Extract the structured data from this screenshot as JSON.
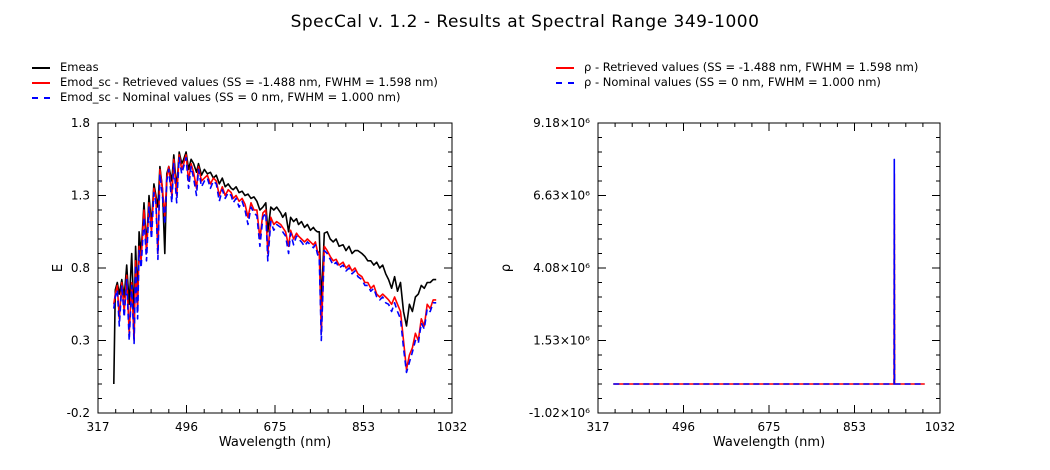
{
  "title": "SpecCal v. 1.2 - Results at Spectral Range 349-1000",
  "legend_left": [
    {
      "label": "Emeas",
      "style": "solid",
      "color": "#000000"
    },
    {
      "label": "Emod_sc - Retrieved values (SS = -1.488 nm, FWHM =  1.598 nm)",
      "style": "solid",
      "color": "#ff0000"
    },
    {
      "label": "Emod_sc - Nominal values (SS = 0 nm, FWHM =  1.000 nm)",
      "style": "dashed",
      "color": "#0000ff"
    }
  ],
  "legend_right": [
    {
      "label": "ρ - Retrieved values (SS = -1.488 nm, FWHM =  1.598 nm)",
      "style": "solid",
      "color": "#ff0000"
    },
    {
      "label": "ρ - Nominal values (SS = 0 nm, FWHM =  1.000 nm)",
      "style": "dashed",
      "color": "#0000ff"
    }
  ],
  "chart_data": [
    {
      "type": "line",
      "xlabel": "Wavelength (nm)",
      "ylabel": "E",
      "xlim": [
        317,
        1032
      ],
      "ylim": [
        -0.2,
        1.8
      ],
      "xticks": [
        "317",
        "496",
        "675",
        "853",
        "1032"
      ],
      "yticks": [
        "-0.2",
        "0.3",
        "0.8",
        "1.3",
        "1.8"
      ],
      "x": [
        349,
        352,
        356,
        360,
        365,
        370,
        375,
        380,
        385,
        390,
        393,
        397,
        400,
        404,
        410,
        415,
        420,
        425,
        430,
        434,
        438,
        442,
        447,
        452,
        456,
        460,
        466,
        470,
        476,
        481,
        486,
        490,
        495,
        500,
        505,
        510,
        516,
        520,
        526,
        532,
        538,
        544,
        550,
        556,
        562,
        568,
        574,
        580,
        586,
        590,
        596,
        602,
        608,
        614,
        620,
        626,
        632,
        638,
        644,
        650,
        656,
        660,
        666,
        672,
        678,
        686,
        690,
        696,
        702,
        706,
        712,
        718,
        722,
        728,
        734,
        740,
        746,
        752,
        756,
        760,
        764,
        768,
        774,
        780,
        786,
        792,
        798,
        804,
        812,
        818,
        824,
        830,
        836,
        842,
        850,
        856,
        862,
        868,
        874,
        880,
        886,
        892,
        898,
        904,
        910,
        916,
        922,
        928,
        934,
        940,
        946,
        952,
        958,
        964,
        970,
        976,
        982,
        988,
        994,
        1000
      ],
      "series": [
        {
          "name": "Emeas",
          "color": "#000000",
          "dashed": false,
          "values": [
            0.0,
            0.65,
            0.7,
            0.62,
            0.72,
            0.6,
            0.82,
            0.55,
            0.9,
            0.45,
            0.95,
            0.6,
            1.05,
            0.9,
            1.25,
            0.95,
            1.3,
            1.1,
            1.38,
            1.3,
            1.22,
            1.5,
            1.35,
            0.9,
            1.45,
            1.5,
            1.4,
            1.58,
            1.35,
            1.6,
            1.52,
            1.55,
            1.6,
            1.48,
            1.55,
            1.52,
            1.46,
            1.52,
            1.44,
            1.48,
            1.45,
            1.46,
            1.42,
            1.44,
            1.38,
            1.42,
            1.36,
            1.38,
            1.35,
            1.34,
            1.36,
            1.32,
            1.33,
            1.3,
            1.31,
            1.28,
            1.29,
            1.26,
            1.2,
            1.22,
            1.25,
            1.05,
            1.22,
            1.2,
            1.22,
            1.18,
            1.15,
            1.18,
            1.05,
            1.15,
            1.12,
            1.14,
            1.1,
            1.12,
            1.08,
            1.1,
            1.06,
            1.08,
            1.06,
            1.05,
            1.05,
            0.55,
            1.04,
            1.05,
            1.0,
            0.98,
            1.0,
            0.95,
            0.96,
            0.92,
            0.95,
            0.9,
            0.92,
            0.92,
            0.9,
            0.88,
            0.85,
            0.85,
            0.82,
            0.84,
            0.8,
            0.82,
            0.76,
            0.72,
            0.66,
            0.74,
            0.64,
            0.7,
            0.5,
            0.4,
            0.55,
            0.5,
            0.6,
            0.62,
            0.68,
            0.66,
            0.7,
            0.7,
            0.72,
            0.72
          ]
        },
        {
          "name": "Emod_sc - Retrieved values (SS = -1.488 nm, FWHM =  1.598 nm)",
          "color": "#ff0000",
          "dashed": false,
          "values": [
            0.55,
            0.62,
            0.68,
            0.45,
            0.7,
            0.5,
            0.75,
            0.35,
            0.7,
            0.3,
            0.85,
            0.5,
            0.95,
            0.85,
            1.2,
            0.9,
            1.25,
            1.05,
            1.35,
            1.28,
            0.9,
            1.48,
            1.35,
            1.15,
            1.42,
            1.5,
            1.3,
            1.55,
            1.3,
            1.58,
            1.48,
            1.52,
            1.58,
            1.4,
            1.52,
            1.46,
            1.35,
            1.5,
            1.4,
            1.42,
            1.44,
            1.38,
            1.42,
            1.4,
            1.3,
            1.36,
            1.3,
            1.34,
            1.32,
            1.28,
            1.3,
            1.26,
            1.28,
            1.24,
            1.15,
            1.25,
            1.2,
            1.2,
            1.0,
            1.18,
            1.2,
            0.9,
            1.15,
            1.1,
            1.12,
            1.1,
            1.08,
            1.05,
            0.95,
            1.06,
            1.0,
            1.04,
            1.02,
            1.0,
            0.98,
            1.0,
            0.98,
            0.96,
            0.98,
            0.92,
            0.9,
            0.35,
            0.95,
            0.92,
            0.88,
            0.85,
            0.86,
            0.82,
            0.84,
            0.8,
            0.82,
            0.78,
            0.8,
            0.76,
            0.74,
            0.7,
            0.7,
            0.66,
            0.68,
            0.62,
            0.6,
            0.62,
            0.6,
            0.58,
            0.55,
            0.6,
            0.55,
            0.5,
            0.3,
            0.1,
            0.2,
            0.25,
            0.35,
            0.3,
            0.45,
            0.4,
            0.55,
            0.52,
            0.58,
            0.58
          ]
        },
        {
          "name": "Emod_sc - Nominal values (SS = 0 nm, FWHM =  1.000 nm)",
          "color": "#0000ff",
          "dashed": true,
          "values": [
            0.52,
            0.6,
            0.65,
            0.4,
            0.68,
            0.46,
            0.72,
            0.3,
            0.68,
            0.28,
            0.82,
            0.45,
            0.92,
            0.8,
            1.15,
            0.85,
            1.22,
            1.0,
            1.32,
            1.25,
            0.86,
            1.45,
            1.3,
            1.1,
            1.4,
            1.48,
            1.25,
            1.52,
            1.25,
            1.56,
            1.45,
            1.5,
            1.56,
            1.35,
            1.5,
            1.42,
            1.3,
            1.48,
            1.36,
            1.4,
            1.42,
            1.35,
            1.4,
            1.38,
            1.26,
            1.34,
            1.28,
            1.32,
            1.3,
            1.25,
            1.28,
            1.22,
            1.26,
            1.2,
            1.1,
            1.22,
            1.18,
            1.16,
            0.95,
            1.15,
            1.18,
            0.85,
            1.12,
            1.06,
            1.1,
            1.08,
            1.05,
            1.02,
            0.9,
            1.04,
            0.96,
            1.02,
            1.0,
            0.98,
            0.95,
            0.98,
            0.96,
            0.94,
            0.96,
            0.9,
            0.86,
            0.3,
            0.92,
            0.9,
            0.86,
            0.82,
            0.84,
            0.8,
            0.82,
            0.78,
            0.8,
            0.76,
            0.78,
            0.74,
            0.72,
            0.68,
            0.68,
            0.64,
            0.66,
            0.6,
            0.58,
            0.6,
            0.56,
            0.55,
            0.5,
            0.56,
            0.5,
            0.45,
            0.25,
            0.08,
            0.15,
            0.22,
            0.3,
            0.28,
            0.42,
            0.38,
            0.52,
            0.5,
            0.56,
            0.56
          ]
        }
      ]
    },
    {
      "type": "line",
      "xlabel": "Wavelength (nm)",
      "ylabel": "ρ",
      "xlim": [
        317,
        1032
      ],
      "ylim": [
        -1020000,
        9180000
      ],
      "xticks": [
        "317",
        "496",
        "675",
        "853",
        "1032"
      ],
      "yticks": [
        "-1.02×10⁶",
        "1.53×10⁶",
        "4.08×10⁶",
        "6.63×10⁶",
        "9.18×10⁶"
      ],
      "x": [
        349,
        936,
        936.5,
        937,
        1000
      ],
      "series": [
        {
          "name": "ρ - Retrieved values (SS = -1.488 nm, FWHM =  1.598 nm)",
          "color": "#ff0000",
          "dashed": false,
          "values": [
            0,
            0,
            7400000,
            0,
            0
          ]
        },
        {
          "name": "ρ - Nominal values (SS = 0 nm, FWHM =  1.000 nm)",
          "color": "#0000ff",
          "dashed": true,
          "values": [
            0,
            0,
            7900000,
            0,
            0
          ]
        }
      ]
    }
  ]
}
